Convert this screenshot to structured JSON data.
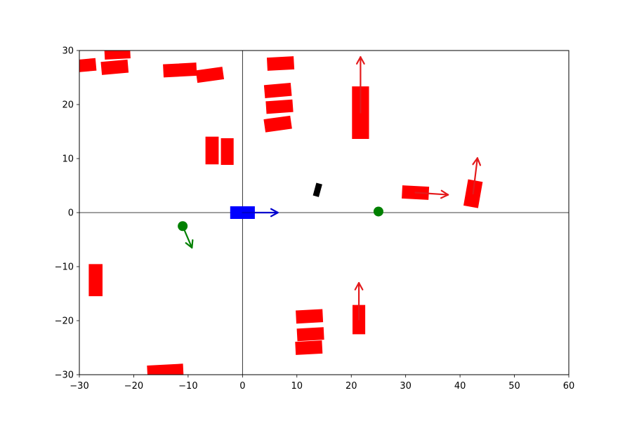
{
  "chart_data": {
    "type": "scatter",
    "xlim": [
      -30,
      60
    ],
    "ylim": [
      -30,
      30
    ],
    "x_ticks": [
      -30,
      -20,
      -10,
      0,
      10,
      20,
      30,
      40,
      50,
      60
    ],
    "y_ticks": [
      -30,
      -20,
      -10,
      0,
      10,
      20,
      30
    ],
    "grid": false,
    "axis_lines": {
      "x": 0,
      "y": 0
    },
    "colors": {
      "ego": "#0000ff",
      "obstacle": "#ff0000",
      "point": "#008000",
      "small_object": "#000000",
      "arrow_red": "#e41a1c",
      "arrow_blue": "#0000cc",
      "arrow_green": "#008000"
    },
    "ego_vehicle": {
      "x": 0,
      "y": 0,
      "length": 4.4,
      "width": 2.2,
      "heading_deg": 0,
      "arrow": {
        "dx": 6.5,
        "dy": 0
      }
    },
    "obstacles": [
      {
        "x": -28.5,
        "y": 27.3,
        "length": 3.0,
        "width": 2.2,
        "heading_deg": 5
      },
      {
        "x": -23.0,
        "y": 29.5,
        "length": 4.6,
        "width": 2.0,
        "heading_deg": 3
      },
      {
        "x": -23.5,
        "y": 26.9,
        "length": 4.8,
        "width": 2.3,
        "heading_deg": 5
      },
      {
        "x": -11.5,
        "y": 26.4,
        "length": 6.0,
        "width": 2.3,
        "heading_deg": 3
      },
      {
        "x": -6.0,
        "y": 25.5,
        "length": 4.8,
        "width": 2.2,
        "heading_deg": 8
      },
      {
        "x": 7.0,
        "y": 27.6,
        "length": 4.8,
        "width": 2.3,
        "heading_deg": 3
      },
      {
        "x": 6.5,
        "y": 22.6,
        "length": 4.8,
        "width": 2.3,
        "heading_deg": 5
      },
      {
        "x": 6.8,
        "y": 19.6,
        "length": 4.8,
        "width": 2.2,
        "heading_deg": 4
      },
      {
        "x": 6.5,
        "y": 16.4,
        "length": 4.8,
        "width": 2.3,
        "heading_deg": 8
      },
      {
        "x": 21.7,
        "y": 18.5,
        "length": 9.6,
        "width": 3.0,
        "heading_deg": 90,
        "arrow": {
          "dx": 0,
          "dy": 10.3
        }
      },
      {
        "x": -5.6,
        "y": 11.5,
        "length": 5.0,
        "width": 2.3,
        "heading_deg": 90
      },
      {
        "x": -2.8,
        "y": 11.3,
        "length": 4.8,
        "width": 2.2,
        "heading_deg": 90
      },
      {
        "x": 31.8,
        "y": 3.7,
        "length": 4.8,
        "width": 2.3,
        "heading_deg": -3,
        "arrow": {
          "dx": 6.0,
          "dy": -0.4
        }
      },
      {
        "x": 42.4,
        "y": 3.5,
        "length": 4.8,
        "width": 2.6,
        "heading_deg": 80,
        "arrow": {
          "dx": 0.8,
          "dy": 6.6
        }
      },
      {
        "x": -27.0,
        "y": -12.5,
        "length": 5.8,
        "width": 2.4,
        "heading_deg": 90
      },
      {
        "x": 12.3,
        "y": -19.2,
        "length": 4.8,
        "width": 2.3,
        "heading_deg": 3
      },
      {
        "x": 12.5,
        "y": -22.5,
        "length": 4.8,
        "width": 2.2,
        "heading_deg": 3
      },
      {
        "x": 12.2,
        "y": -25.0,
        "length": 4.8,
        "width": 2.3,
        "heading_deg": 3
      },
      {
        "x": 21.4,
        "y": -19.8,
        "length": 5.3,
        "width": 2.2,
        "heading_deg": 90,
        "arrow": {
          "dx": 0,
          "dy": 6.8
        }
      },
      {
        "x": -14.2,
        "y": -29.3,
        "length": 6.5,
        "width": 2.2,
        "heading_deg": 3
      }
    ],
    "points": [
      {
        "x": -11.0,
        "y": -2.5,
        "arrow": {
          "dx": 1.7,
          "dy": -4.0
        }
      },
      {
        "x": 25.0,
        "y": 0.2
      }
    ],
    "small_objects": [
      {
        "x": 13.8,
        "y": 4.2,
        "length": 2.3,
        "width": 1.0,
        "heading_deg": 75
      }
    ]
  }
}
